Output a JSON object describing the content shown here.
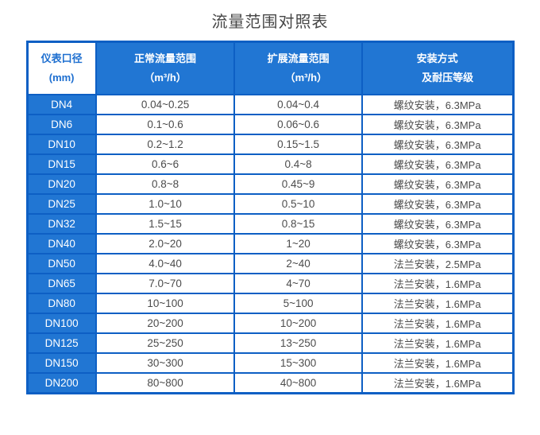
{
  "page": {
    "title": "流量范围对照表"
  },
  "colors": {
    "grid_blue": "#0d5fc4",
    "cell_blue": "#2176d3",
    "header_text_on_white": "#1e6fd0",
    "data_text": "#4c4c4c",
    "title_text": "#474747"
  },
  "table": {
    "columns": [
      {
        "label": "仪表口径\n(mm)"
      },
      {
        "label": "正常流量范围\n（m³/h）"
      },
      {
        "label": "扩展流量范围\n　　（m³/h）"
      },
      {
        "label": "安装方式\n　　及耐压等级"
      }
    ],
    "rows": [
      {
        "dn": "DN4",
        "normal": "0.04~0.25",
        "extended": "0.04~0.4",
        "install": "螺纹安装，6.3MPa"
      },
      {
        "dn": "DN6",
        "normal": "0.1~0.6",
        "extended": "0.06~0.6",
        "install": "螺纹安装，6.3MPa"
      },
      {
        "dn": "DN10",
        "normal": "0.2~1.2",
        "extended": "0.15~1.5",
        "install": "螺纹安装，6.3MPa"
      },
      {
        "dn": "DN15",
        "normal": "0.6~6",
        "extended": "0.4~8",
        "install": "螺纹安装，6.3MPa"
      },
      {
        "dn": "DN20",
        "normal": "0.8~8",
        "extended": "0.45~9",
        "install": "螺纹安装，6.3MPa"
      },
      {
        "dn": "DN25",
        "normal": "1.0~10",
        "extended": "0.5~10",
        "install": "螺纹安装，6.3MPa"
      },
      {
        "dn": "DN32",
        "normal": "1.5~15",
        "extended": "0.8~15",
        "install": "螺纹安装，6.3MPa"
      },
      {
        "dn": "DN40",
        "normal": "2.0~20",
        "extended": "1~20",
        "install": "螺纹安装，6.3MPa"
      },
      {
        "dn": "DN50",
        "normal": "4.0~40",
        "extended": "2~40",
        "install": "法兰安装，2.5MPa"
      },
      {
        "dn": "DN65",
        "normal": "7.0~70",
        "extended": "4~70",
        "install": "法兰安装，1.6MPa"
      },
      {
        "dn": "DN80",
        "normal": "10~100",
        "extended": "5~100",
        "install": "法兰安装，1.6MPa"
      },
      {
        "dn": "DN100",
        "normal": "20~200",
        "extended": "10~200",
        "install": "法兰安装，1.6MPa"
      },
      {
        "dn": "DN125",
        "normal": "25~250",
        "extended": "13~250",
        "install": "法兰安装，1.6MPa"
      },
      {
        "dn": "DN150",
        "normal": "30~300",
        "extended": "15~300",
        "install": "法兰安装，1.6MPa"
      },
      {
        "dn": "DN200",
        "normal": "80~800",
        "extended": "40~800",
        "install": "法兰安装，1.6MPa"
      }
    ]
  },
  "chart_data": {
    "type": "table",
    "title": "流量范围对照表",
    "columns": [
      "仪表口径(mm)",
      "正常流量范围（m³/h）",
      "扩展流量范围（m³/h）",
      "安装方式及耐压等级"
    ],
    "rows": [
      [
        "DN4",
        "0.04~0.25",
        "0.04~0.4",
        "螺纹安装，6.3MPa"
      ],
      [
        "DN6",
        "0.1~0.6",
        "0.06~0.6",
        "螺纹安装，6.3MPa"
      ],
      [
        "DN10",
        "0.2~1.2",
        "0.15~1.5",
        "螺纹安装，6.3MPa"
      ],
      [
        "DN15",
        "0.6~6",
        "0.4~8",
        "螺纹安装，6.3MPa"
      ],
      [
        "DN20",
        "0.8~8",
        "0.45~9",
        "螺纹安装，6.3MPa"
      ],
      [
        "DN25",
        "1.0~10",
        "0.5~10",
        "螺纹安装，6.3MPa"
      ],
      [
        "DN32",
        "1.5~15",
        "0.8~15",
        "螺纹安装，6.3MPa"
      ],
      [
        "DN40",
        "2.0~20",
        "1~20",
        "螺纹安装，6.3MPa"
      ],
      [
        "DN50",
        "4.0~40",
        "2~40",
        "法兰安装，2.5MPa"
      ],
      [
        "DN65",
        "7.0~70",
        "4~70",
        "法兰安装，1.6MPa"
      ],
      [
        "DN80",
        "10~100",
        "5~100",
        "法兰安装，1.6MPa"
      ],
      [
        "DN100",
        "20~200",
        "10~200",
        "法兰安装，1.6MPa"
      ],
      [
        "DN125",
        "25~250",
        "13~250",
        "法兰安装，1.6MPa"
      ],
      [
        "DN150",
        "30~300",
        "15~300",
        "法兰安装，1.6MPa"
      ],
      [
        "DN200",
        "80~800",
        "40~800",
        "法兰安装，1.6MPa"
      ]
    ]
  }
}
